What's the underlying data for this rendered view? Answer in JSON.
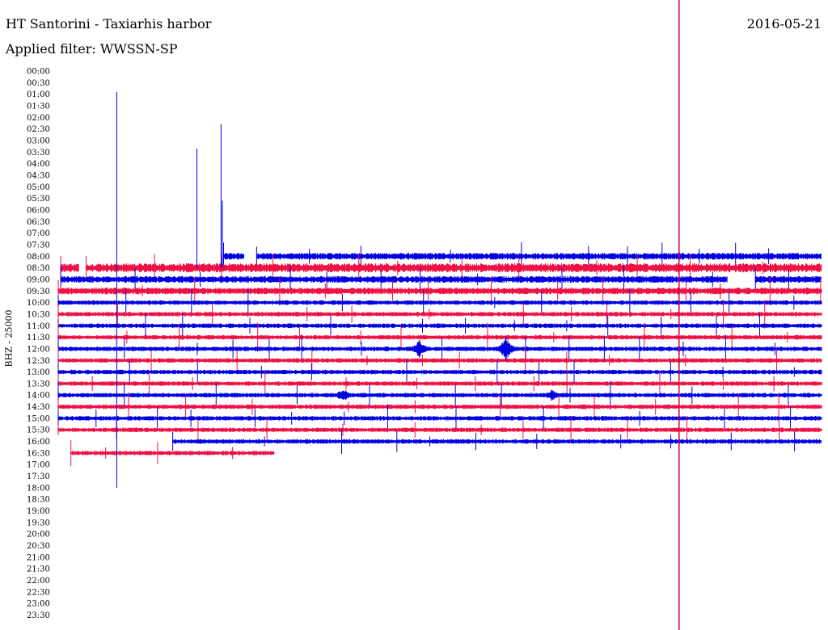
{
  "header": {
    "station_title": "HT Santorini - Taxiarhis harbor",
    "filter_label": "Applied filter: WWSSN-SP",
    "date": "2016-05-21"
  },
  "chart_data": {
    "type": "line",
    "title": "HT Santorini - Taxiarhis harbor",
    "subtitle": "Applied filter: WWSSN-SP",
    "ylabel": "BHZ - 25000",
    "y_tick_labels": [
      "00:00",
      "00:30",
      "01:00",
      "01:30",
      "02:00",
      "02:30",
      "03:00",
      "03:30",
      "04:00",
      "04:30",
      "05:00",
      "05:30",
      "06:00",
      "06:30",
      "07:00",
      "07:30",
      "08:00",
      "08:30",
      "09:00",
      "09:30",
      "10:00",
      "10:30",
      "11:00",
      "11:30",
      "12:00",
      "12:30",
      "13:00",
      "13:30",
      "14:00",
      "14:30",
      "15:00",
      "15:30",
      "16:00",
      "16:30",
      "17:00",
      "17:30",
      "18:00",
      "18:30",
      "19:00",
      "19:30",
      "20:00",
      "20:30",
      "21:00",
      "21:30",
      "22:00",
      "22:30",
      "23:00",
      "23:30"
    ],
    "row_colors": [
      "#0000e0",
      "#ee1144"
    ],
    "marker_color": "#cc0044",
    "x_range_minutes": [
      0,
      30
    ],
    "marker_line_x_minutes": 24.4,
    "traces": [
      {
        "row": 16,
        "segments": [
          [
            6.5,
            7.3
          ],
          [
            7.8,
            30
          ]
        ],
        "amp": 3
      },
      {
        "row": 17,
        "segments": [
          [
            0.1,
            0.8
          ],
          [
            1.1,
            30
          ]
        ],
        "amp": 4
      },
      {
        "row": 18,
        "segments": [
          [
            0.1,
            26.3
          ],
          [
            27.4,
            30
          ]
        ],
        "amp": 3
      },
      {
        "row": 19,
        "segments": [
          [
            0,
            30
          ]
        ],
        "amp": 3
      },
      {
        "row": 20,
        "segments": [
          [
            0,
            30
          ]
        ],
        "amp": 2
      },
      {
        "row": 21,
        "segments": [
          [
            0,
            30
          ]
        ],
        "amp": 2
      },
      {
        "row": 22,
        "segments": [
          [
            0,
            30
          ]
        ],
        "amp": 2
      },
      {
        "row": 23,
        "segments": [
          [
            0,
            30
          ]
        ],
        "amp": 2
      },
      {
        "row": 24,
        "segments": [
          [
            0,
            30
          ]
        ],
        "amp": 2
      },
      {
        "row": 25,
        "segments": [
          [
            0,
            30
          ]
        ],
        "amp": 2
      },
      {
        "row": 26,
        "segments": [
          [
            0,
            30
          ]
        ],
        "amp": 2
      },
      {
        "row": 27,
        "segments": [
          [
            0,
            30
          ]
        ],
        "amp": 2
      },
      {
        "row": 28,
        "segments": [
          [
            0,
            30
          ]
        ],
        "amp": 2
      },
      {
        "row": 29,
        "segments": [
          [
            0,
            30
          ]
        ],
        "amp": 2
      },
      {
        "row": 30,
        "segments": [
          [
            0,
            30
          ]
        ],
        "amp": 2
      },
      {
        "row": 31,
        "segments": [
          [
            0,
            30
          ]
        ],
        "amp": 2
      },
      {
        "row": 32,
        "segments": [
          [
            4.5,
            30
          ]
        ],
        "amp": 2
      },
      {
        "row": 33,
        "segments": [
          [
            0.5,
            8.5
          ]
        ],
        "amp": 2
      }
    ],
    "events": [
      {
        "row": 24,
        "x_minutes": 14.2,
        "amp": 12
      },
      {
        "row": 24,
        "x_minutes": 17.6,
        "amp": 16
      },
      {
        "row": 28,
        "x_minutes": 11.2,
        "amp": 10
      },
      {
        "row": 28,
        "x_minutes": 19.4,
        "amp": 8
      }
    ],
    "spikes": [
      {
        "row": 18,
        "x_minutes": 2.3,
        "top_row": 1.8,
        "bottom_row": 36.0
      },
      {
        "row": 16,
        "x_minutes": 5.45,
        "top_row": 6.7,
        "bottom_row": 17.0
      },
      {
        "row": 16,
        "x_minutes": 6.4,
        "top_row": 4.6,
        "bottom_row": 17.0
      },
      {
        "row": 16,
        "x_minutes": 6.45,
        "top_row": 11.2,
        "bottom_row": 17.0
      }
    ]
  }
}
